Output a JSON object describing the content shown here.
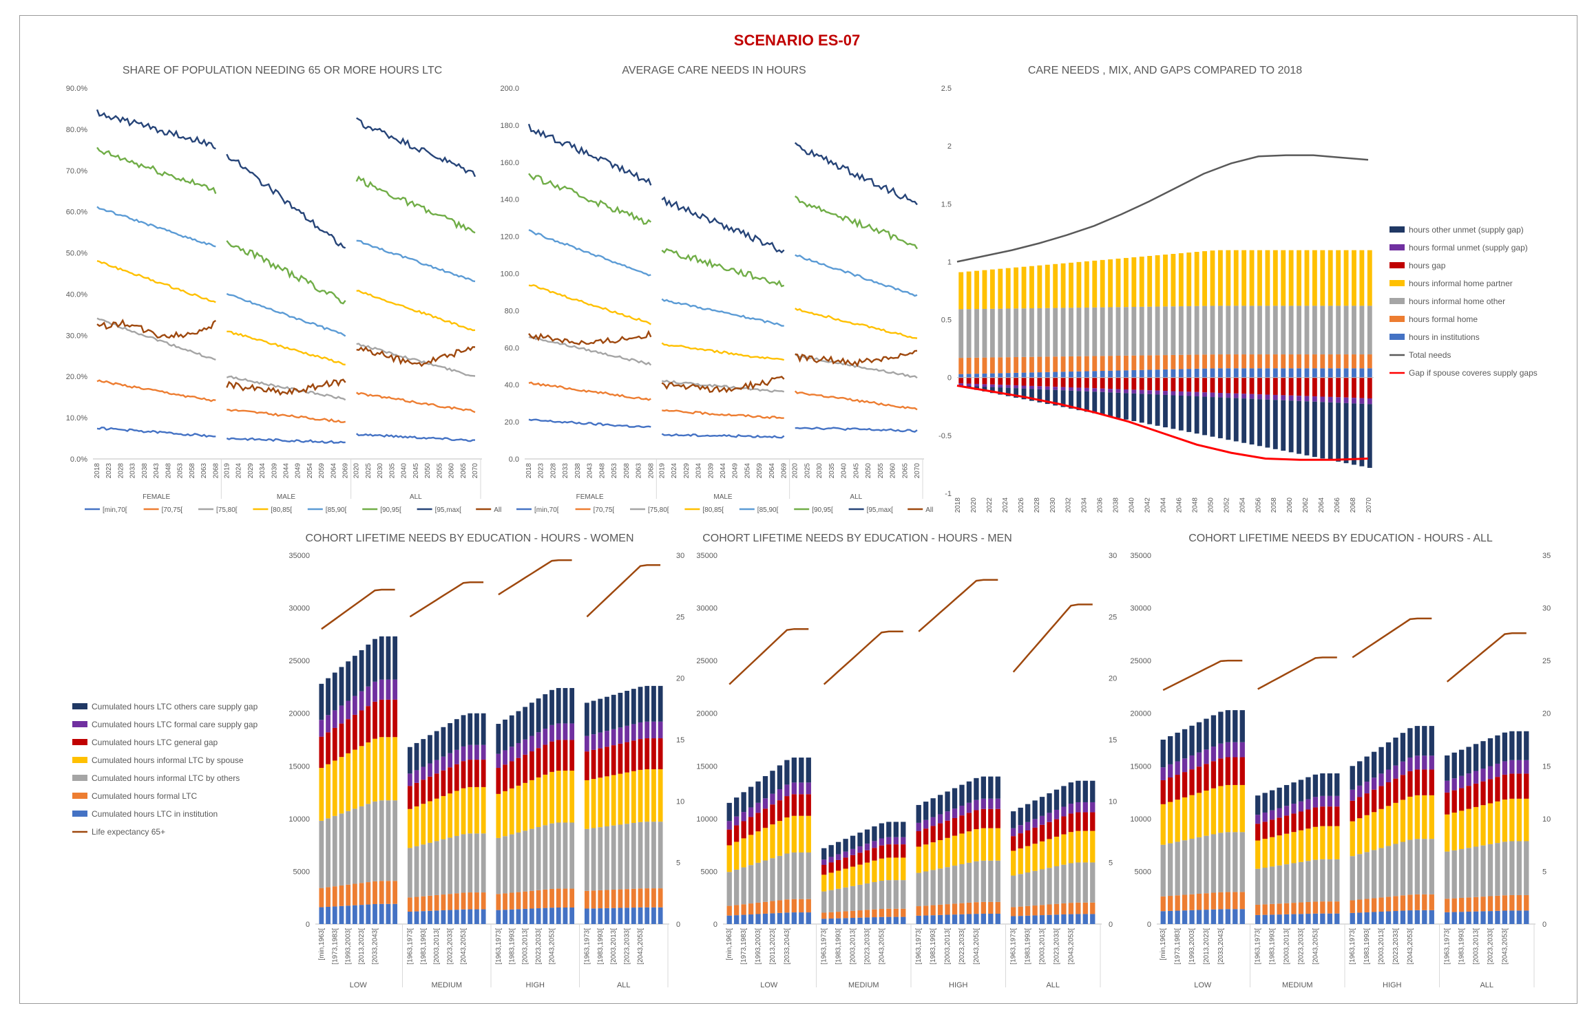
{
  "title": "SCENARIO ES-07",
  "colors": {
    "title": "#c00000",
    "age": [
      "#4472c4",
      "#ed7d31",
      "#a5a5a5",
      "#ffc000",
      "#5b9bd5",
      "#70ad47",
      "#264478",
      "#9e480e"
    ],
    "stack": [
      "#4472c4",
      "#ed7d31",
      "#a5a5a5",
      "#ffc000",
      "#c00000",
      "#7030a0",
      "#203864"
    ],
    "total": "#595959",
    "gap_line": "#ff0000",
    "life": "#9e480e"
  },
  "chart_data": [
    {
      "id": "share",
      "type": "line",
      "title": "SHARE OF POPULATION NEEDING 65 OR MORE HOURS LTC",
      "ylim": [
        0,
        90
      ],
      "yticks": [
        "0.0%",
        "10.0%",
        "20.0%",
        "30.0%",
        "40.0%",
        "50.0%",
        "60.0%",
        "70.0%",
        "80.0%",
        "90.0%"
      ],
      "groups": [
        "FEMALE",
        "MALE",
        "ALL"
      ],
      "group_x_labels": [
        [
          "2018",
          "2023",
          "2028",
          "2033",
          "2038",
          "2043",
          "2048",
          "2053",
          "2058",
          "2063",
          "2068"
        ],
        [
          "2019",
          "2024",
          "2029",
          "2034",
          "2039",
          "2044",
          "2049",
          "2054",
          "2059",
          "2064",
          "2069"
        ],
        [
          "2020",
          "2025",
          "2030",
          "2035",
          "2040",
          "2045",
          "2050",
          "2055",
          "2060",
          "2065",
          "2070"
        ]
      ],
      "legend": [
        "[min,70[",
        "[70,75[",
        "[75,80[",
        "[80,85[",
        "[85,90[",
        "[90,95[",
        "[95,max[",
        "All"
      ],
      "series": {
        "FEMALE": [
          [
            7.5,
            5.5
          ],
          [
            19,
            14
          ],
          [
            34,
            24
          ],
          [
            48,
            38
          ],
          [
            61,
            51.5
          ],
          [
            75,
            65
          ],
          [
            84,
            76
          ],
          [
            32,
            33,
            30,
            30,
            33
          ]
        ],
        "MALE": [
          [
            5,
            4
          ],
          [
            12,
            9
          ],
          [
            20,
            14.5
          ],
          [
            31,
            23
          ],
          [
            40,
            30
          ],
          [
            53,
            38
          ],
          [
            74,
            51
          ],
          [
            18,
            16,
            19
          ]
        ],
        "ALL": [
          [
            6,
            4.5
          ],
          [
            16,
            11.5
          ],
          [
            28,
            20
          ],
          [
            41,
            31
          ],
          [
            53,
            43
          ],
          [
            68,
            55
          ],
          [
            82,
            69
          ],
          [
            27,
            23,
            27
          ]
        ]
      }
    },
    {
      "id": "avg",
      "type": "line",
      "title": "AVERAGE CARE NEEDS IN HOURS",
      "ylim": [
        0,
        200
      ],
      "yticks": [
        "0.0",
        "20.0",
        "40.0",
        "60.0",
        "80.0",
        "100.0",
        "120.0",
        "140.0",
        "160.0",
        "180.0",
        "200.0"
      ],
      "groups": [
        "FEMALE",
        "MALE",
        "ALL"
      ],
      "group_x_labels": [
        [
          "2018",
          "2023",
          "2028",
          "2033",
          "2038",
          "2043",
          "2048",
          "2053",
          "2058",
          "2063",
          "2068"
        ],
        [
          "2019",
          "2024",
          "2029",
          "2034",
          "2039",
          "2044",
          "2049",
          "2054",
          "2059",
          "2064",
          "2069"
        ],
        [
          "2020",
          "2025",
          "2030",
          "2035",
          "2040",
          "2045",
          "2050",
          "2055",
          "2060",
          "2065",
          "2070"
        ]
      ],
      "legend": [
        "[min,70[",
        "[70,75[",
        "[75,80[",
        "[80,85[",
        "[85,90[",
        "[90,95[",
        "[95,max[",
        "All"
      ],
      "series": {
        "FEMALE": [
          [
            21,
            17
          ],
          [
            41,
            32
          ],
          [
            66,
            51
          ],
          [
            94,
            73
          ],
          [
            123,
            99
          ],
          [
            153,
            127
          ],
          [
            179,
            149
          ],
          [
            67,
            62,
            67
          ]
        ],
        "MALE": [
          [
            13,
            12
          ],
          [
            26,
            22
          ],
          [
            42,
            36
          ],
          [
            62,
            53
          ],
          [
            86,
            72
          ],
          [
            113,
            94
          ],
          [
            140,
            112
          ],
          [
            40,
            37,
            43
          ]
        ],
        "ALL": [
          [
            17,
            15
          ],
          [
            36,
            27
          ],
          [
            56,
            44
          ],
          [
            81,
            65
          ],
          [
            110,
            88
          ],
          [
            140,
            115
          ],
          [
            169,
            138
          ],
          [
            55,
            52,
            57
          ]
        ]
      }
    },
    {
      "id": "mix",
      "type": "bar",
      "title": "CARE NEEDS , MIX, AND GAPS COMPARED TO 2018",
      "ylim": [
        -1,
        2.5
      ],
      "yticks": [
        "-1",
        "-0.5",
        "0",
        "0.5",
        "1",
        "1.5",
        "2",
        "2.5"
      ],
      "x_labels": [
        "2018",
        "2020",
        "2022",
        "2024",
        "2026",
        "2028",
        "2030",
        "2032",
        "2034",
        "2036",
        "2038",
        "2040",
        "2042",
        "2044",
        "2046",
        "2048",
        "2050",
        "2052",
        "2054",
        "2056",
        "2058",
        "2060",
        "2062",
        "2064",
        "2066",
        "2068",
        "2070"
      ],
      "legend": [
        "hours other unmet (supply gap)",
        "hours formal unmet (supply gap)",
        "hours gap",
        "hours informal home partner",
        "hours informal home other",
        "hours formal home",
        "hours in institutions",
        "Total needs",
        "Gap if spouse coveres supply gaps"
      ],
      "total_needs": [
        1.0,
        1.05,
        1.1,
        1.16,
        1.23,
        1.31,
        1.41,
        1.52,
        1.64,
        1.76,
        1.85,
        1.91,
        1.92,
        1.92,
        1.9,
        1.88
      ],
      "gap_if_spouse": [
        -0.07,
        -0.12,
        -0.17,
        -0.23,
        -0.3,
        -0.38,
        -0.48,
        -0.58,
        -0.65,
        -0.7,
        -0.71,
        -0.71,
        -0.7
      ],
      "positive_stack_2018": [
        0.03,
        0.14,
        0.42,
        0.32
      ],
      "positive_stack_2070": [
        0.08,
        0.12,
        0.42,
        0.48
      ],
      "negative_stack_2018": [
        -0.05,
        -0.02,
        -0.01
      ],
      "negative_stack_2070": [
        -0.18,
        -0.05,
        -0.55
      ]
    },
    {
      "id": "women",
      "type": "bar",
      "title": "COHORT LIFETIME NEEDS BY EDUCATION - HOURS - WOMEN",
      "ylim": [
        0,
        35000
      ],
      "y2lim": [
        0,
        30
      ],
      "groups": [
        "LOW",
        "MEDIUM",
        "HIGH",
        "ALL"
      ],
      "totals": [
        [
          22800,
          27300
        ],
        [
          16800,
          20000
        ],
        [
          19000,
          22400
        ],
        [
          21000,
          22600
        ]
      ],
      "life": [
        [
          24,
          27.2
        ],
        [
          25,
          27.8
        ],
        [
          26.8,
          29.6
        ],
        [
          25,
          29.2
        ]
      ]
    },
    {
      "id": "men",
      "type": "bar",
      "title": "COHORT LIFETIME NEEDS BY EDUCATION - HOURS - MEN",
      "ylim": [
        0,
        35000
      ],
      "y2lim": [
        0,
        30
      ],
      "groups": [
        "LOW",
        "MEDIUM",
        "HIGH",
        "ALL"
      ],
      "totals": [
        [
          11500,
          15800
        ],
        [
          7200,
          9700
        ],
        [
          11300,
          14000
        ],
        [
          10700,
          13600
        ]
      ],
      "life": [
        [
          19.5,
          24
        ],
        [
          19.5,
          23.8
        ],
        [
          23.8,
          28
        ],
        [
          20.5,
          26
        ]
      ]
    },
    {
      "id": "all",
      "type": "bar",
      "title": "COHORT LIFETIME NEEDS BY EDUCATION - HOURS - ALL",
      "ylim": [
        0,
        35000
      ],
      "y2lim": [
        0,
        35
      ],
      "yticks2": [
        "0",
        "5",
        "10",
        "15",
        "20",
        "25",
        "30",
        "35"
      ],
      "groups": [
        "LOW",
        "MEDIUM",
        "HIGH",
        "ALL"
      ],
      "totals": [
        [
          17500,
          20300
        ],
        [
          12200,
          14300
        ],
        [
          15000,
          18800
        ],
        [
          16000,
          18300
        ]
      ],
      "life": [
        [
          22.2,
          25
        ],
        [
          22.3,
          25.3
        ],
        [
          25.3,
          29
        ],
        [
          23,
          27.6
        ]
      ]
    }
  ],
  "cohort_x_labels": [
    "[min,1963[",
    "[1973,1983[",
    "[1993,2003[",
    "[2013,2023[",
    "[2033,2043["
  ],
  "cohort_x_labels_other": [
    "[1963,1973[",
    "[1983,1993[",
    "[2003,2013[",
    "[2023,2033[",
    "[2043,2053["
  ],
  "cohort_yticks": [
    "0",
    "5000",
    "10000",
    "15000",
    "20000",
    "25000",
    "30000",
    "35000"
  ],
  "cohort_yticks2": [
    "0",
    "5",
    "10",
    "15",
    "20",
    "25",
    "30"
  ],
  "cohort_legend": [
    "Cumulated hours LTC others care supply gap",
    "Cumulated hours LTC formal care supply gap",
    "Cumulated hours LTC general gap",
    "Cumulated hours informal LTC by spouse",
    "Cumulated hours informal LTC by others",
    "Cumulated hours formal LTC",
    "Cumulated hours LTC in institution",
    "Life expectancy 65+"
  ]
}
